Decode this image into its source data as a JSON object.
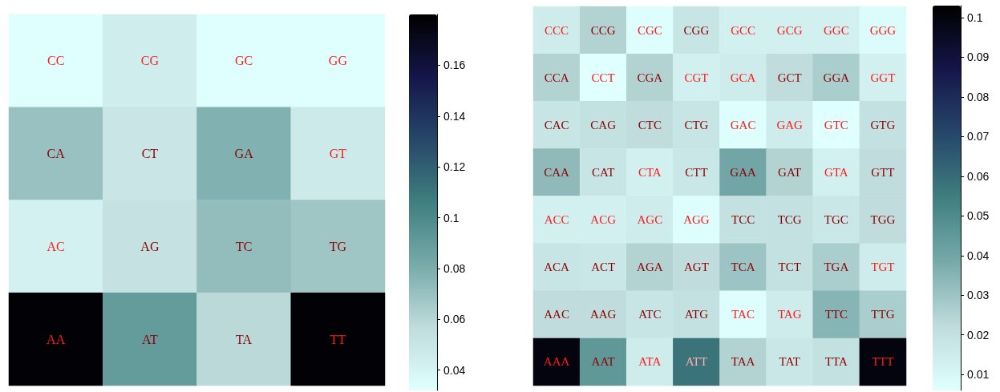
{
  "chart_data": [
    {
      "type": "heatmap",
      "categories": [
        null,
        null,
        null,
        null
      ],
      "y_categories": [
        null,
        null,
        null,
        null
      ],
      "cells": [
        [
          0.033,
          0.045,
          0.033,
          0.033
        ],
        [
          0.07,
          0.05,
          0.078,
          0.047
        ],
        [
          0.042,
          0.053,
          0.072,
          0.068
        ],
        [
          0.178,
          0.09,
          0.058,
          0.178
        ]
      ],
      "cell_labels": [
        [
          "CC",
          "CG",
          "GC",
          "GG"
        ],
        [
          "CA",
          "CT",
          "GA",
          "GT"
        ],
        [
          "AC",
          "AG",
          "TC",
          "TG"
        ],
        [
          "AA",
          "AT",
          "TA",
          "TT"
        ]
      ],
      "clim": [
        0.032,
        0.18
      ],
      "cticks": [
        0.04,
        0.06,
        0.08,
        0.1,
        0.12,
        0.14,
        0.16
      ]
    },
    {
      "type": "heatmap",
      "categories": [
        null,
        null,
        null,
        null,
        null,
        null,
        null,
        null
      ],
      "y_categories": [
        null,
        null,
        null,
        null,
        null,
        null,
        null,
        null
      ],
      "cells": [
        [
          0.015,
          0.025,
          0.007,
          0.018,
          0.013,
          0.013,
          0.013,
          0.008
        ],
        [
          0.025,
          0.006,
          0.025,
          0.013,
          0.015,
          0.022,
          0.027,
          0.013
        ],
        [
          0.018,
          0.02,
          0.022,
          0.018,
          0.007,
          0.015,
          0.006,
          0.02
        ],
        [
          0.033,
          0.018,
          0.013,
          0.017,
          0.04,
          0.025,
          0.013,
          0.022
        ],
        [
          0.013,
          0.013,
          0.015,
          0.007,
          0.02,
          0.02,
          0.017,
          0.022
        ],
        [
          0.018,
          0.017,
          0.025,
          0.022,
          0.03,
          0.02,
          0.027,
          0.015
        ],
        [
          0.022,
          0.022,
          0.018,
          0.02,
          0.007,
          0.015,
          0.035,
          0.027
        ],
        [
          0.1,
          0.045,
          0.015,
          0.058,
          0.025,
          0.017,
          0.02,
          0.1
        ]
      ],
      "cell_labels": [
        [
          "CCC",
          "CCG",
          "CGC",
          "CGG",
          "GCC",
          "GCG",
          "GGC",
          "GGG"
        ],
        [
          "CCA",
          "CCT",
          "CGA",
          "CGT",
          "GCA",
          "GCT",
          "GGA",
          "GGT"
        ],
        [
          "CAC",
          "CAG",
          "CTC",
          "CTG",
          "GAC",
          "GAG",
          "GTC",
          "GTG"
        ],
        [
          "CAA",
          "CAT",
          "CTA",
          "CTT",
          "GAA",
          "GAT",
          "GTA",
          "GTT"
        ],
        [
          "ACC",
          "ACG",
          "AGC",
          "AGG",
          "TCC",
          "TCG",
          "TGC",
          "TGG"
        ],
        [
          "ACA",
          "ACT",
          "AGA",
          "AGT",
          "TCA",
          "TCT",
          "TGA",
          "TGT"
        ],
        [
          "AAC",
          "AAG",
          "ATC",
          "ATG",
          "TAC",
          "TAG",
          "TTC",
          "TTG"
        ],
        [
          "AAA",
          "AAT",
          "ATA",
          "ATT",
          "TAA",
          "TAT",
          "TTA",
          "TTT"
        ]
      ],
      "clim": [
        0.006,
        0.103
      ],
      "cticks": [
        0.01,
        0.02,
        0.03,
        0.04,
        0.05,
        0.06,
        0.07,
        0.08,
        0.09,
        0.1
      ]
    }
  ]
}
